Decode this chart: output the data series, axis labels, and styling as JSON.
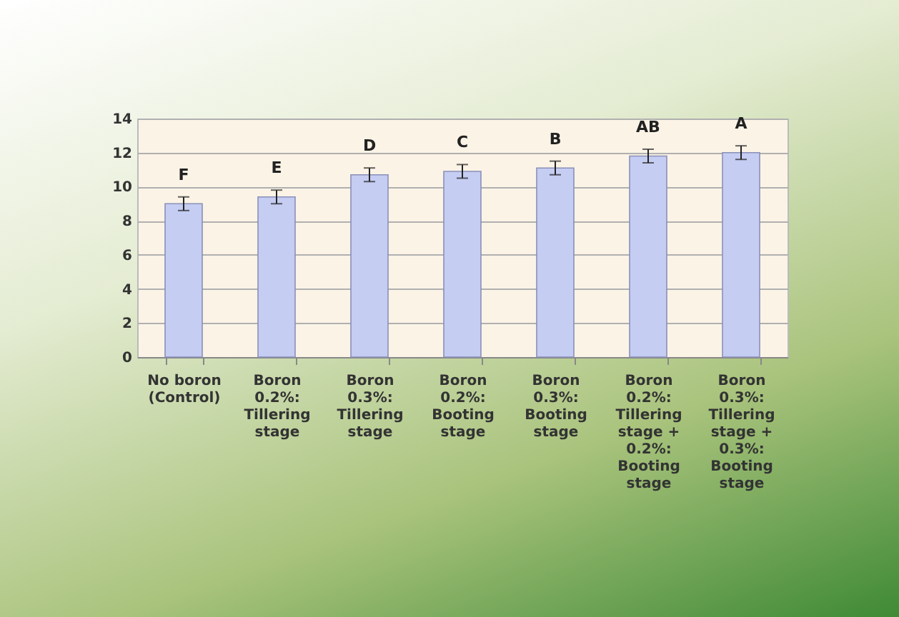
{
  "chart_data": {
    "type": "bar",
    "categories": [
      "No boron (Control)",
      "Boron 0.2%: Tillering stage",
      "Boron 0.3%: Tillering stage",
      "Boron 0.2%: Booting stage",
      "Boron 0.3%: Booting stage",
      "Boron 0.2%: Tillering stage + 0.2%: Booting stage",
      "Boron 0.3%: Tillering stage + 0.3%: Booting stage"
    ],
    "values": [
      9.0,
      9.4,
      10.7,
      10.9,
      11.1,
      11.8,
      12.0
    ],
    "errors": [
      0.4,
      0.4,
      0.4,
      0.4,
      0.4,
      0.4,
      0.4
    ],
    "color": "#c5cdf2",
    "ylim": [
      0,
      14
    ],
    "yticks": [
      0,
      2,
      4,
      6,
      8,
      10,
      12,
      14
    ],
    "grid": "y",
    "annotations": [
      {
        "text": "F",
        "x": "No boron (Control)",
        "y": 9.4
      },
      {
        "text": "E",
        "x": "Boron 0.2%: Tillering stage",
        "y": 9.8
      },
      {
        "text": "D",
        "x": "Boron 0.3%: Tillering stage",
        "y": 11.1
      },
      {
        "text": "C",
        "x": "Boron 0.2%: Booting stage",
        "y": 11.3
      },
      {
        "text": "B",
        "x": "Boron 0.3%: Booting stage",
        "y": 11.5
      },
      {
        "text": "AB",
        "x": "Boron 0.2%: Tillering stage + 0.2%: Booting stage",
        "y": 12.2
      },
      {
        "text": "A",
        "x": "Boron 0.3%: Tillering stage + 0.3%: Booting stage",
        "y": 12.4
      }
    ]
  }
}
